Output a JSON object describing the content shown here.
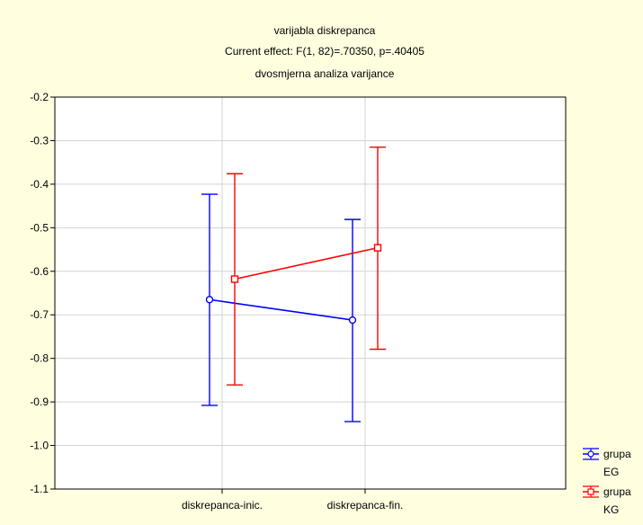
{
  "chart_data": {
    "type": "line",
    "title_lines": [
      "varijabla diskrepanca",
      "Current effect: F(1, 82)=.70350, p=.40405",
      "dvosmjerna analiza varijance"
    ],
    "categories": [
      "diskrepanca-inic.",
      "diskrepanca-fin."
    ],
    "ylim": [
      -1.1,
      -0.2
    ],
    "yticks": [
      -0.2,
      -0.3,
      -0.4,
      -0.5,
      -0.6,
      -0.7,
      -0.8,
      -0.9,
      -1.0,
      -1.1
    ],
    "ytick_labels": [
      "-0.2",
      "-0.3",
      "-0.4",
      "-0.5",
      "-0.6",
      "-0.7",
      "-0.8",
      "-0.9",
      "-1.0",
      "-1.1"
    ],
    "grid": true,
    "legend_position": "right-bottom",
    "series": [
      {
        "name": "grupa EG",
        "legend_lines": [
          "grupa",
          "EG"
        ],
        "color": "#0000FF",
        "marker": "circle",
        "values": [
          -0.665,
          -0.712
        ],
        "err_low": [
          -0.908,
          -0.945
        ],
        "err_high": [
          -0.423,
          -0.481
        ]
      },
      {
        "name": "grupa KG",
        "legend_lines": [
          "grupa",
          "KG"
        ],
        "color": "#FF0000",
        "marker": "square",
        "values": [
          -0.618,
          -0.546
        ],
        "err_low": [
          -0.861,
          -0.779
        ],
        "err_high": [
          -0.376,
          -0.315
        ]
      }
    ]
  }
}
